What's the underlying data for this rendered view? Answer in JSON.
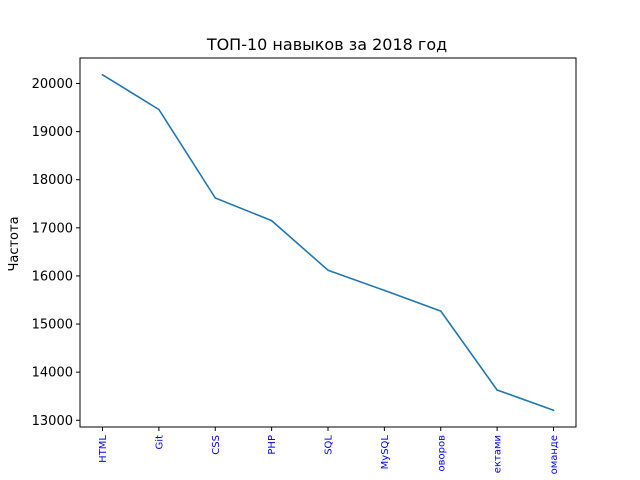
{
  "chart_data": {
    "type": "line",
    "title": "ТОП-10 навыков за 2018 год",
    "xlabel": "",
    "ylabel": "Частота",
    "categories": [
      "HTML",
      "Git",
      "CSS",
      "PHP",
      "SQL",
      "MySQL",
      "оворов",
      "ектами",
      "оманде"
    ],
    "values": [
      20180,
      19460,
      17620,
      17150,
      16120,
      15700,
      15270,
      13630,
      13210
    ],
    "ylim": [
      12860,
      20530
    ],
    "yticks": [
      13000,
      14000,
      15000,
      16000,
      17000,
      18000,
      19000,
      20000
    ],
    "ytick_labels": [
      "13000",
      "14000",
      "15000",
      "16000",
      "17000",
      "18000",
      "19000",
      "20000"
    ],
    "grid": false,
    "line_color": "#1f77b4",
    "xtick_label_color": "#0000ff"
  }
}
